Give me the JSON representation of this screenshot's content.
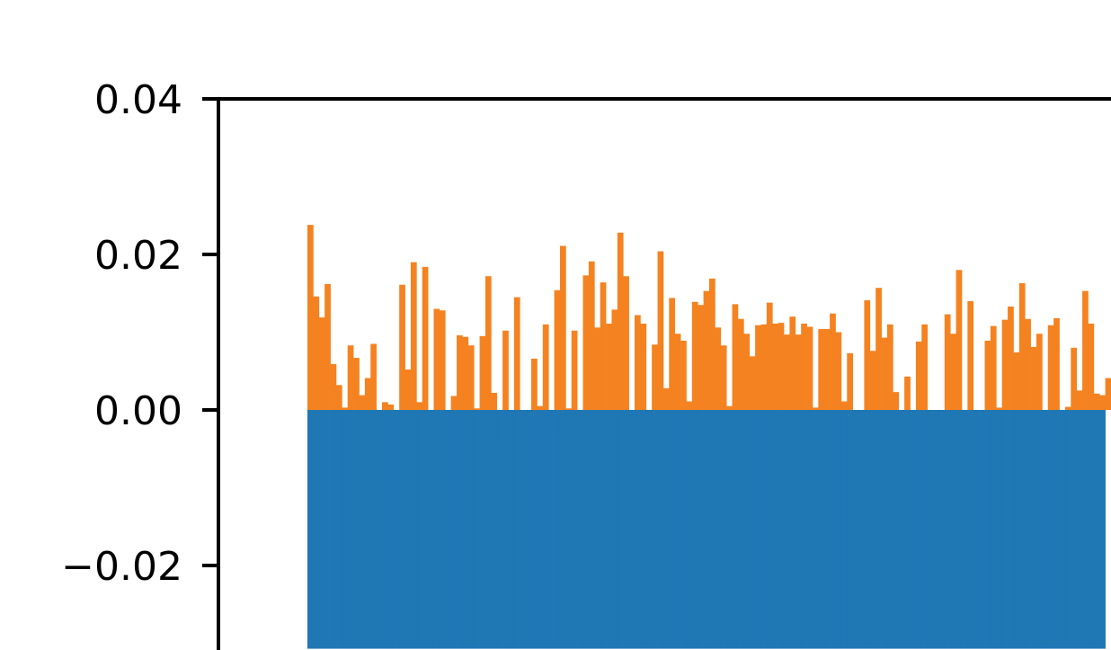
{
  "chart_data": {
    "type": "bar",
    "title": "",
    "xlabel": "",
    "ylabel": "",
    "ylim": [
      -0.0307,
      0.04
    ],
    "y_ticks": [
      {
        "value": 0.04,
        "label": "0.04"
      },
      {
        "value": 0.02,
        "label": "0.02"
      },
      {
        "value": 0.0,
        "label": "0.00"
      },
      {
        "value": -0.02,
        "label": "−0.02"
      }
    ],
    "grid": false,
    "legend": "none",
    "colors": {
      "series_a": "#1f77b4",
      "series_b": "#f58220",
      "axis": "#000000"
    },
    "series": [
      {
        "color": "#f58220",
        "values": [
          0.0238,
          0.0146,
          0.0119,
          0.0162,
          0.0059,
          0.0032,
          0.0003,
          0.0083,
          0.0067,
          0.0019,
          0.0041,
          0.0085,
          -0.0001,
          0.001,
          0.0007,
          -0.0094,
          0.0161,
          0.0052,
          0.019,
          0.001,
          0.0184,
          -0.0014,
          0.013,
          0.0128,
          -0.0042,
          0.0018,
          0.0096,
          0.0094,
          0.0083,
          0.0002,
          0.0095,
          0.0172,
          0.0022,
          -0.004,
          0.0102,
          -0.0004,
          0.0145,
          -0.0069,
          -0.0069,
          0.0066,
          0.0005,
          0.011,
          -0.0028,
          0.0154,
          0.0211,
          0.0002,
          0.0102,
          -0.0065,
          0.0173,
          0.0191,
          0.0106,
          0.0164,
          0.0111,
          0.0129,
          0.0228,
          0.0172,
          -0.0009,
          0.0122,
          0.0111,
          -0.0035,
          0.0084,
          0.0204,
          0.0028,
          0.0144,
          0.0098,
          0.0089,
          0.0011,
          0.0139,
          0.0135,
          0.0153,
          0.0169,
          0.0106,
          0.0083,
          0.0005,
          0.0136,
          0.0117,
          0.0098,
          0.0069,
          0.0109,
          0.011,
          0.0138,
          0.0111,
          0.0112,
          0.0097,
          0.012,
          0.0097,
          0.0111,
          0.0107,
          0.0003,
          0.0104,
          0.0104,
          0.0124,
          0.01,
          0.0011,
          0.0073,
          -0.0019,
          -0.0038,
          0.0141,
          0.0076,
          0.0157,
          0.0093,
          0.011,
          0.0023,
          -0.0019,
          0.0043,
          -0.0007,
          0.0088,
          0.011,
          -0.0018,
          -0.0008,
          -0.0033,
          0.0123,
          0.0098,
          0.018,
          -0.0017,
          0.014,
          0.0,
          -0.0004,
          0.0089,
          0.0108,
          0.0003,
          0.0116,
          0.0133,
          0.0074,
          0.0163,
          0.0117,
          0.0081,
          0.0098,
          -0.0042,
          0.0109,
          0.0118,
          -0.0002,
          0.0004,
          0.008,
          0.0025,
          0.0153,
          0.0111,
          0.0021,
          0.0019,
          0.0041
        ]
      },
      {
        "color": "#1f77b4",
        "values": [
          -0.0307,
          -0.0307,
          -0.0307,
          -0.0307,
          -0.0307,
          -0.0307,
          -0.0307,
          -0.0307,
          -0.0307,
          -0.0307,
          -0.0307,
          -0.0307,
          -0.0307,
          -0.0307,
          -0.0307,
          -0.0307,
          -0.0307,
          -0.0307,
          -0.0307,
          -0.0307,
          -0.0307,
          -0.0307,
          -0.0307,
          -0.0307,
          -0.0307,
          -0.0307,
          -0.0307,
          -0.0307,
          -0.0307,
          -0.0307,
          -0.0307,
          -0.0307,
          -0.0307,
          -0.0307,
          -0.0307,
          -0.0307,
          -0.0307,
          -0.0307,
          -0.0307,
          -0.0307,
          -0.0307,
          -0.0307,
          -0.0307,
          -0.0307,
          -0.0307,
          -0.0307,
          -0.0307,
          -0.0307,
          -0.0307,
          -0.0307,
          -0.0307,
          -0.0307,
          -0.0307,
          -0.0307,
          -0.0307,
          -0.0307,
          -0.0307,
          -0.0307,
          -0.0307,
          -0.0307,
          -0.0307,
          -0.0307,
          -0.0307,
          -0.0307,
          -0.0307,
          -0.0307,
          -0.0307,
          -0.0307,
          -0.0307,
          -0.0307,
          -0.0307,
          -0.0307,
          -0.0307,
          -0.0307,
          -0.0307,
          -0.0307,
          -0.0307,
          -0.0307,
          -0.0307,
          -0.0307,
          -0.0307,
          -0.0307,
          -0.0307,
          -0.0307,
          -0.0307,
          -0.0307,
          -0.0307,
          -0.0307,
          -0.0307,
          -0.0307,
          -0.0307,
          -0.0307,
          -0.0307,
          -0.0307,
          -0.0307,
          -0.0307,
          -0.0307,
          -0.0307,
          -0.0307,
          -0.0307,
          -0.0307,
          -0.0307,
          -0.0307,
          -0.0307,
          -0.0307,
          -0.0307,
          -0.0307,
          -0.0307,
          -0.0307,
          -0.0307,
          -0.0307,
          -0.0307,
          -0.0307,
          -0.0307,
          -0.0307,
          -0.0307,
          -0.0307,
          -0.0307,
          -0.0307,
          -0.0307,
          -0.0307,
          -0.0307,
          -0.0307,
          -0.0307,
          -0.0307,
          -0.0307,
          -0.0307,
          -0.0307,
          -0.0307,
          -0.0307,
          -0.0307,
          -0.0307,
          -0.0307,
          -0.0307,
          -0.0307,
          -0.0307,
          -0.0307,
          -0.0307,
          -0.0307
        ]
      }
    ]
  }
}
